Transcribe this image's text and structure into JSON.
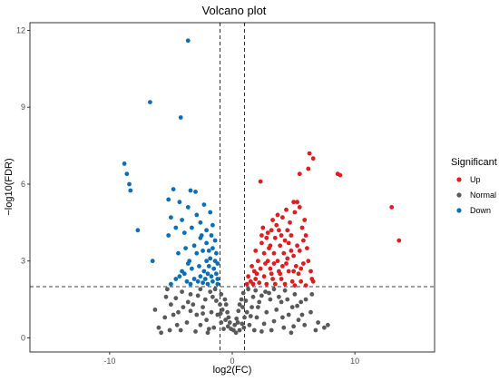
{
  "chart_data": {
    "type": "scatter",
    "title": "Volcano plot",
    "xlabel": "log2(FC)",
    "ylabel": "−log10(FDR)",
    "xlim": [
      -16.5,
      16.5
    ],
    "ylim": [
      -0.55,
      12.3
    ],
    "x_ticks": [
      -10,
      0,
      10
    ],
    "y_ticks": [
      0,
      3,
      6,
      9,
      12
    ],
    "fc_thresholds": [
      -1,
      1
    ],
    "fdr_threshold": 2,
    "grid": false,
    "legend": {
      "title": "Significant",
      "position": "right",
      "entries": [
        {
          "label": "Up",
          "color": "#e41a1c"
        },
        {
          "label": "Normal",
          "color": "#595959"
        },
        {
          "label": "Down",
          "color": "#0a6fb8"
        }
      ]
    },
    "series": [
      {
        "name": "Up",
        "color": "#e41a1c",
        "points": [
          [
            6.3,
            7.2
          ],
          [
            6.6,
            7.0
          ],
          [
            5.5,
            6.4
          ],
          [
            6.2,
            6.6
          ],
          [
            8.6,
            6.4
          ],
          [
            8.8,
            6.35
          ],
          [
            13.0,
            5.1
          ],
          [
            13.6,
            3.8
          ],
          [
            2.3,
            6.1
          ],
          [
            5.3,
            5.3
          ],
          [
            5.0,
            5.3
          ],
          [
            4.4,
            5.0
          ],
          [
            5.1,
            4.9
          ],
          [
            5.5,
            5.1
          ],
          [
            3.7,
            4.8
          ],
          [
            3.3,
            4.6
          ],
          [
            4.1,
            4.7
          ],
          [
            5.9,
            4.6
          ],
          [
            2.5,
            4.3
          ],
          [
            3.2,
            4.2
          ],
          [
            4.5,
            4.2
          ],
          [
            5.7,
            4.3
          ],
          [
            6.1,
            3.5
          ],
          [
            2.8,
            3.9
          ],
          [
            3.5,
            3.9
          ],
          [
            4.0,
            4.0
          ],
          [
            4.8,
            4.0
          ],
          [
            2.4,
            3.7
          ],
          [
            3.1,
            3.6
          ],
          [
            3.9,
            3.6
          ],
          [
            4.6,
            3.7
          ],
          [
            5.5,
            3.4
          ],
          [
            6.2,
            3.0
          ],
          [
            1.9,
            3.4
          ],
          [
            2.6,
            3.3
          ],
          [
            3.4,
            3.3
          ],
          [
            4.2,
            3.3
          ],
          [
            5.0,
            3.2
          ],
          [
            2.1,
            3.0
          ],
          [
            2.9,
            3.0
          ],
          [
            3.7,
            3.0
          ],
          [
            4.4,
            2.9
          ],
          [
            5.2,
            2.8
          ],
          [
            5.8,
            2.9
          ],
          [
            6.4,
            2.6
          ],
          [
            1.6,
            2.8
          ],
          [
            2.3,
            2.7
          ],
          [
            3.1,
            2.7
          ],
          [
            3.8,
            2.6
          ],
          [
            4.6,
            2.6
          ],
          [
            5.4,
            2.5
          ],
          [
            1.3,
            2.4
          ],
          [
            1.9,
            2.3
          ],
          [
            2.6,
            2.4
          ],
          [
            3.3,
            2.3
          ],
          [
            4.0,
            2.3
          ],
          [
            4.9,
            2.2
          ],
          [
            5.6,
            2.2
          ],
          [
            6.5,
            2.3
          ],
          [
            1.2,
            2.1
          ],
          [
            1.7,
            2.1
          ],
          [
            2.2,
            2.15
          ],
          [
            2.8,
            2.1
          ],
          [
            3.5,
            2.1
          ],
          [
            4.3,
            2.1
          ],
          [
            5.1,
            2.05
          ],
          [
            6.0,
            2.05
          ],
          [
            4.7,
            4.5
          ],
          [
            3.6,
            4.4
          ],
          [
            2.0,
            2.5
          ],
          [
            3.0,
            3.5
          ],
          [
            4.3,
            3.8
          ],
          [
            5.3,
            3.6
          ],
          [
            2.7,
            2.9
          ],
          [
            3.9,
            2.5
          ],
          [
            4.5,
            3.1
          ],
          [
            5.8,
            3.8
          ],
          [
            2.4,
            4.0
          ],
          [
            1.5,
            2.2
          ],
          [
            4.1,
            2.8
          ],
          [
            3.4,
            2.9
          ],
          [
            5.0,
            2.6
          ],
          [
            2.9,
            4.1
          ],
          [
            3.8,
            4.2
          ],
          [
            6.0,
            4.0
          ],
          [
            5.6,
            2.7
          ],
          [
            1.8,
            2.6
          ],
          [
            6.6,
            2.2
          ],
          [
            3.2,
            2.5
          ],
          [
            4.8,
            3.4
          ]
        ]
      },
      {
        "name": "Down",
        "color": "#0a6fb8",
        "points": [
          [
            -3.6,
            11.6
          ],
          [
            -6.7,
            9.2
          ],
          [
            -4.2,
            8.6
          ],
          [
            -8.8,
            6.8
          ],
          [
            -8.6,
            6.4
          ],
          [
            -8.4,
            6.0
          ],
          [
            -8.3,
            5.75
          ],
          [
            -4.8,
            5.8
          ],
          [
            -3.4,
            5.75
          ],
          [
            -3.0,
            5.7
          ],
          [
            -5.2,
            5.4
          ],
          [
            -4.3,
            5.3
          ],
          [
            -2.3,
            5.2
          ],
          [
            -3.6,
            5.1
          ],
          [
            -1.8,
            4.9
          ],
          [
            -2.9,
            4.8
          ],
          [
            -4.1,
            4.6
          ],
          [
            -5.0,
            4.7
          ],
          [
            -2.6,
            4.5
          ],
          [
            -3.3,
            4.3
          ],
          [
            -1.6,
            4.4
          ],
          [
            -2.1,
            4.2
          ],
          [
            -3.9,
            4.1
          ],
          [
            -4.6,
            4.3
          ],
          [
            -5.2,
            4.0
          ],
          [
            -1.7,
            4.0
          ],
          [
            -2.6,
            3.9
          ],
          [
            -1.4,
            3.8
          ],
          [
            -2.1,
            3.7
          ],
          [
            -3.1,
            3.6
          ],
          [
            -3.8,
            3.5
          ],
          [
            -1.6,
            3.5
          ],
          [
            -2.4,
            3.4
          ],
          [
            -1.3,
            3.3
          ],
          [
            -2.9,
            3.3
          ],
          [
            -4.4,
            3.3
          ],
          [
            -1.8,
            3.1
          ],
          [
            -1.4,
            3.0
          ],
          [
            -2.1,
            3.0
          ],
          [
            -3.5,
            3.0
          ],
          [
            -6.5,
            3.0
          ],
          [
            -1.2,
            2.9
          ],
          [
            -1.9,
            2.8
          ],
          [
            -2.7,
            2.8
          ],
          [
            -1.5,
            2.7
          ],
          [
            -2.3,
            2.6
          ],
          [
            -3.3,
            2.7
          ],
          [
            -1.3,
            2.5
          ],
          [
            -2.0,
            2.5
          ],
          [
            -3.9,
            2.5
          ],
          [
            -1.7,
            2.4
          ],
          [
            -2.6,
            2.4
          ],
          [
            -4.3,
            2.4
          ],
          [
            -1.2,
            2.3
          ],
          [
            -2.2,
            2.3
          ],
          [
            -3.1,
            2.3
          ],
          [
            -1.6,
            2.2
          ],
          [
            -2.8,
            2.2
          ],
          [
            -3.7,
            2.2
          ],
          [
            -4.6,
            2.3
          ],
          [
            -5.0,
            2.1
          ],
          [
            -1.2,
            2.1
          ],
          [
            -2.0,
            2.1
          ],
          [
            -3.4,
            2.1
          ],
          [
            -7.7,
            4.2
          ],
          [
            -2.5,
            4.0
          ],
          [
            -1.9,
            3.4
          ],
          [
            -3.6,
            2.9
          ],
          [
            -2.4,
            2.15
          ],
          [
            -4.1,
            2.6
          ]
        ]
      },
      {
        "name": "Normal",
        "color": "#595959",
        "points": [
          [
            -5.3,
            1.9
          ],
          [
            -4.1,
            1.8
          ],
          [
            -3.4,
            1.7
          ],
          [
            -2.6,
            1.9
          ],
          [
            -1.8,
            1.8
          ],
          [
            -1.4,
            1.9
          ],
          [
            -0.9,
            1.7
          ],
          [
            -0.6,
            1.5
          ],
          [
            -0.5,
            1.3
          ],
          [
            -0.4,
            1.0
          ],
          [
            -0.3,
            0.8
          ],
          [
            -0.2,
            0.6
          ],
          [
            -0.1,
            0.35
          ],
          [
            0.1,
            0.3
          ],
          [
            0.2,
            0.5
          ],
          [
            0.35,
            0.75
          ],
          [
            0.5,
            1.05
          ],
          [
            0.6,
            1.3
          ],
          [
            0.75,
            1.5
          ],
          [
            0.9,
            1.75
          ],
          [
            1.3,
            1.9
          ],
          [
            1.9,
            1.85
          ],
          [
            2.7,
            1.8
          ],
          [
            3.4,
            1.9
          ],
          [
            4.3,
            1.85
          ],
          [
            5.1,
            1.7
          ],
          [
            5.6,
            1.4
          ],
          [
            4.9,
            1.2
          ],
          [
            4.0,
            1.4
          ],
          [
            3.1,
            1.5
          ],
          [
            2.2,
            1.4
          ],
          [
            1.6,
            1.2
          ],
          [
            1.2,
            1.0
          ],
          [
            1.0,
            0.8
          ],
          [
            0.8,
            0.55
          ],
          [
            0.6,
            0.3
          ],
          [
            1.4,
            0.5
          ],
          [
            2.0,
            0.8
          ],
          [
            2.8,
            1.0
          ],
          [
            3.6,
            1.1
          ],
          [
            4.6,
            0.9
          ],
          [
            5.4,
            0.7
          ],
          [
            5.9,
            0.5
          ],
          [
            6.4,
            1.0
          ],
          [
            7.0,
            0.6
          ],
          [
            6.8,
            0.3
          ],
          [
            7.5,
            0.4
          ],
          [
            -6.0,
            0.4
          ],
          [
            -5.5,
            0.8
          ],
          [
            -4.8,
            0.9
          ],
          [
            -4.0,
            1.2
          ],
          [
            -3.2,
            1.3
          ],
          [
            -2.4,
            1.2
          ],
          [
            -1.7,
            1.0
          ],
          [
            -1.2,
            0.9
          ],
          [
            -0.9,
            0.6
          ],
          [
            -0.7,
            0.35
          ],
          [
            -1.5,
            0.4
          ],
          [
            -2.1,
            0.7
          ],
          [
            -2.9,
            0.9
          ],
          [
            -3.7,
            0.6
          ],
          [
            -4.5,
            0.5
          ],
          [
            -5.1,
            0.3
          ],
          [
            -3.0,
            0.25
          ],
          [
            -2.0,
            0.2
          ],
          [
            2.4,
            0.25
          ],
          [
            3.2,
            0.3
          ],
          [
            4.2,
            0.4
          ],
          [
            1.8,
            0.3
          ],
          [
            -1.0,
            1.3
          ],
          [
            -1.6,
            1.6
          ],
          [
            -2.2,
            1.5
          ],
          [
            -2.8,
            1.65
          ],
          [
            -3.6,
            1.4
          ],
          [
            -4.6,
            1.55
          ],
          [
            -5.0,
            1.3
          ],
          [
            1.1,
            1.45
          ],
          [
            1.7,
            1.6
          ],
          [
            2.4,
            1.65
          ],
          [
            3.0,
            1.75
          ],
          [
            3.8,
            1.6
          ],
          [
            4.5,
            1.5
          ],
          [
            5.3,
            1.25
          ],
          [
            6.0,
            1.5
          ],
          [
            -0.8,
            1.1
          ],
          [
            0.85,
            1.2
          ],
          [
            -0.55,
            0.7
          ],
          [
            0.45,
            0.6
          ],
          [
            -1.3,
            1.45
          ],
          [
            1.5,
            0.85
          ],
          [
            2.6,
            0.55
          ],
          [
            -2.6,
            0.5
          ],
          [
            -4.2,
            0.3
          ],
          [
            4.8,
            0.2
          ],
          [
            -0.35,
            0.45
          ],
          [
            0.3,
            0.2
          ],
          [
            6.5,
            1.7
          ],
          [
            -6.3,
            1.1
          ],
          [
            -5.8,
            0.2
          ],
          [
            7.8,
            0.5
          ],
          [
            5.7,
            0.9
          ],
          [
            -3.4,
            1.05
          ],
          [
            3.4,
            0.65
          ],
          [
            -1.9,
            0.35
          ],
          [
            0.95,
            0.4
          ],
          [
            -0.95,
            0.95
          ],
          [
            2.1,
            1.2
          ],
          [
            -2.4,
            0.95
          ],
          [
            4.1,
            0.8
          ],
          [
            -4.4,
            1.0
          ],
          [
            5.0,
            0.45
          ],
          [
            -5.4,
            1.6
          ]
        ]
      }
    ]
  }
}
